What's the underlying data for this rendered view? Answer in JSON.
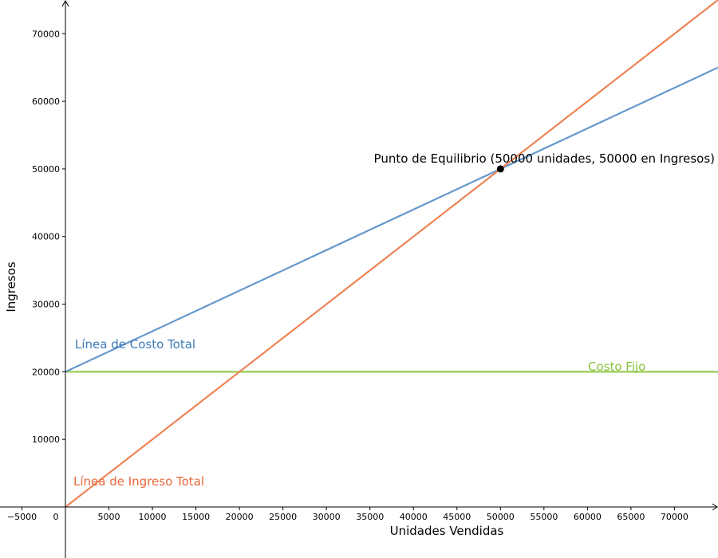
{
  "chart_data": {
    "type": "line",
    "title": "",
    "xlabel": "Unidades Vendidas",
    "ylabel": "Ingresos",
    "xlim": [
      -7500,
      75000
    ],
    "ylim": [
      -7500,
      75000
    ],
    "grid": false,
    "x_ticks": [
      {
        "value": -5000,
        "label": "−5000"
      },
      {
        "value": 0,
        "label": "0"
      },
      {
        "value": 5000,
        "label": "5000"
      },
      {
        "value": 10000,
        "label": "10000"
      },
      {
        "value": 15000,
        "label": "15000"
      },
      {
        "value": 20000,
        "label": "20000"
      },
      {
        "value": 25000,
        "label": "25000"
      },
      {
        "value": 30000,
        "label": "30000"
      },
      {
        "value": 35000,
        "label": "35000"
      },
      {
        "value": 40000,
        "label": "40000"
      },
      {
        "value": 45000,
        "label": "45000"
      },
      {
        "value": 50000,
        "label": "50000"
      },
      {
        "value": 55000,
        "label": "55000"
      },
      {
        "value": 60000,
        "label": "60000"
      },
      {
        "value": 65000,
        "label": "65000"
      },
      {
        "value": 70000,
        "label": "70000"
      }
    ],
    "y_ticks": [
      {
        "value": 10000,
        "label": "10000"
      },
      {
        "value": 20000,
        "label": "20000"
      },
      {
        "value": 30000,
        "label": "30000"
      },
      {
        "value": 40000,
        "label": "40000"
      },
      {
        "value": 50000,
        "label": "50000"
      },
      {
        "value": 60000,
        "label": "60000"
      },
      {
        "value": 70000,
        "label": "70000"
      }
    ],
    "series": [
      {
        "key": "costo-total",
        "name": "Línea de Costo Total",
        "color": "#6699cc",
        "label_color": "#3d7ab8",
        "x": [
          0,
          75000
        ],
        "y": [
          20000,
          65000
        ]
      },
      {
        "key": "ingreso-total",
        "name": "Línea de Ingreso Total",
        "color": "#ee8455",
        "label_color": "#e8693a",
        "x": [
          0,
          75000
        ],
        "y": [
          0,
          75000
        ]
      },
      {
        "key": "costo-fijo",
        "name": "Costo Fijo",
        "color": "#99cc55",
        "label_color": "#88c23a",
        "x": [
          0,
          75000
        ],
        "y": [
          20000,
          20000
        ]
      }
    ],
    "point": {
      "x": 50000,
      "y": 50000,
      "label": "Punto de Equilibrio (50000 unidades, 50000 en Ingresos)"
    }
  }
}
